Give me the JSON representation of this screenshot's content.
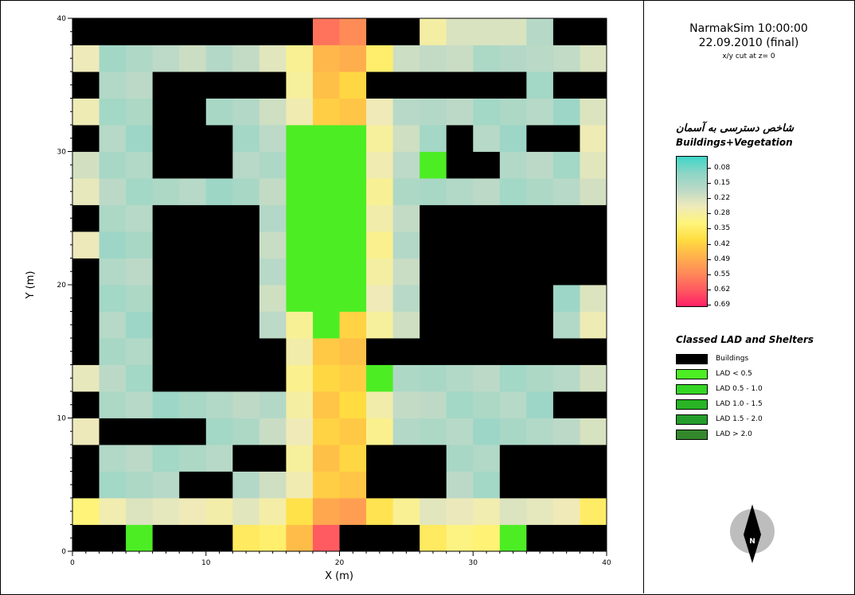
{
  "header": {
    "sim_title": "NarmakSim 10:00:00",
    "date_line": "22.09.2010 (final)",
    "cut_line": "x/y cut at z= 0"
  },
  "colorscale": {
    "title_fa": "شاخص دسترسی به آسمان",
    "title_en": "Buildings+Vegetation",
    "labels": [
      "0.08",
      "0.15",
      "0.22",
      "0.28",
      "0.35",
      "0.42",
      "0.49",
      "0.55",
      "0.62",
      "0.69"
    ],
    "stops": [
      "#3fd6c8",
      "#8dd5c5",
      "#bcd9c7",
      "#eeeaba",
      "#fff47a",
      "#ffdd40",
      "#ffb24c",
      "#ff8a58",
      "#ff5a60",
      "#ff1f66"
    ]
  },
  "lad_legend": {
    "title": "Classed LAD and Shelters",
    "items": [
      {
        "label": "Buildings",
        "color": "#000000"
      },
      {
        "label": "LAD < 0.5",
        "color": "#4ded24"
      },
      {
        "label": "LAD 0.5 - 1.0",
        "color": "#34d524"
      },
      {
        "label": "LAD 1.0 - 1.5",
        "color": "#28b424"
      },
      {
        "label": "LAD 1.5 - 2.0",
        "color": "#249c2c"
      },
      {
        "label": "LAD > 2.0",
        "color": "#34882c"
      }
    ]
  },
  "north_arrow": {
    "label": "N"
  },
  "chart_data": {
    "type": "heatmap",
    "xlabel": "X (m)",
    "ylabel": "Y (m)",
    "xlim": [
      0,
      40
    ],
    "ylim": [
      0,
      40
    ],
    "xticks": [
      0,
      10,
      20,
      30,
      40
    ],
    "yticks": [
      0,
      10,
      20,
      30,
      40
    ],
    "cell_size_m": 2,
    "buildings": [
      [
        0,
        38,
        6,
        40
      ],
      [
        6,
        38,
        18,
        40
      ],
      [
        23,
        38,
        27,
        40
      ],
      [
        37,
        38,
        40,
        40
      ],
      [
        0,
        34,
        3,
        37
      ],
      [
        7,
        34,
        17,
        36
      ],
      [
        23,
        34,
        34,
        37
      ],
      [
        37,
        34,
        40,
        37
      ],
      [
        6,
        32,
        10,
        34
      ],
      [
        0,
        31,
        3,
        32
      ],
      [
        12,
        32,
        14,
        33
      ],
      [
        28,
        31,
        30,
        33
      ],
      [
        34,
        31,
        38,
        33
      ],
      [
        6,
        29,
        12,
        32
      ],
      [
        28,
        29,
        33,
        31
      ],
      [
        37,
        28,
        40,
        29
      ],
      [
        0,
        24,
        3,
        27
      ],
      [
        6,
        25,
        14,
        27
      ],
      [
        6,
        23,
        14,
        25
      ],
      [
        26,
        23,
        40,
        27
      ],
      [
        0,
        21,
        3,
        23
      ],
      [
        6,
        19,
        14,
        23
      ],
      [
        26,
        21,
        40,
        23
      ],
      [
        0,
        17,
        3,
        20
      ],
      [
        6,
        17,
        14,
        19
      ],
      [
        26,
        17,
        37,
        20
      ],
      [
        0,
        15,
        3,
        17
      ],
      [
        6,
        13,
        17,
        16
      ],
      [
        23,
        14,
        37,
        16
      ],
      [
        37,
        15,
        40,
        16
      ],
      [
        0,
        10,
        3,
        13
      ],
      [
        6,
        10,
        17,
        11
      ],
      [
        22,
        10,
        33,
        11
      ],
      [
        37,
        10,
        40,
        13
      ],
      [
        0,
        5,
        3,
        9
      ],
      [
        3,
        8,
        10,
        10
      ],
      [
        12,
        6,
        17,
        8
      ],
      [
        22,
        5,
        28,
        9
      ],
      [
        32,
        5,
        40,
        9
      ],
      [
        8,
        5,
        12,
        7
      ],
      [
        35,
        5,
        38,
        7
      ],
      [
        0,
        1,
        5,
        3
      ],
      [
        6,
        1,
        13,
        3
      ],
      [
        20,
        1,
        27,
        3
      ],
      [
        34,
        1,
        40,
        3
      ],
      [
        17,
        0,
        23,
        1
      ]
    ],
    "vegetation": [
      [
        17,
        18,
        22,
        32
      ],
      [
        18,
        17,
        21,
        18
      ],
      [
        18,
        32,
        21,
        33
      ],
      [
        14,
        32,
        16,
        33
      ],
      [
        25,
        32,
        27,
        33
      ],
      [
        12,
        29,
        13,
        31
      ],
      [
        27,
        29,
        28,
        31
      ],
      [
        23,
        13,
        25,
        14
      ],
      [
        4,
        0,
        6,
        2
      ],
      [
        33,
        0,
        35,
        2
      ]
    ]
  }
}
